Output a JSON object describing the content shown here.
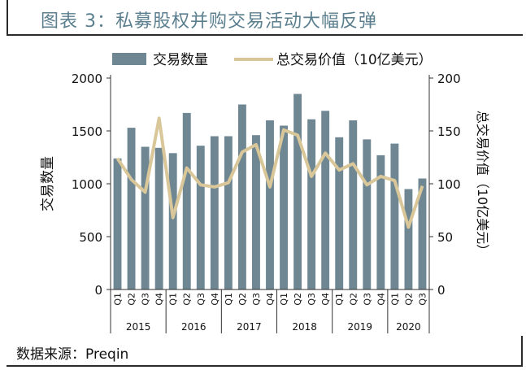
{
  "title": "图表 3：私募股权并购交易活动大幅反弹",
  "source": "数据来源：Preqin",
  "colors": {
    "bar": "#6f8793",
    "line": "#d9c79a",
    "title": "#5b7f8f"
  },
  "chart_data": {
    "type": "bar",
    "legend": {
      "placement": "top",
      "bar_label": "交易数量",
      "line_label": "总交易价值（10亿美元）"
    },
    "ylabel_left": "交易数量",
    "ylabel_right": "总交易价值（10亿美元）",
    "ylim_left": [
      0,
      2000
    ],
    "yticks_left": [
      0,
      500,
      1000,
      1500,
      2000
    ],
    "ylim_right": [
      0,
      200
    ],
    "yticks_right": [
      0,
      50,
      100,
      150,
      200
    ],
    "quarters": [
      "Q1",
      "Q2",
      "Q3",
      "Q4",
      "Q1",
      "Q2",
      "Q3",
      "Q4",
      "Q1",
      "Q2",
      "Q3",
      "Q4",
      "Q1",
      "Q2",
      "Q3",
      "Q4",
      "Q1",
      "Q2",
      "Q3",
      "Q4",
      "Q1",
      "Q2",
      "Q3"
    ],
    "years": [
      {
        "label": "2015",
        "count": 4
      },
      {
        "label": "2016",
        "count": 4
      },
      {
        "label": "2017",
        "count": 4
      },
      {
        "label": "2018",
        "count": 4
      },
      {
        "label": "2019",
        "count": 4
      },
      {
        "label": "2020",
        "count": 3
      }
    ],
    "series": [
      {
        "name": "交易数量",
        "axis": "left",
        "type": "bar",
        "values": [
          1240,
          1530,
          1350,
          1340,
          1290,
          1670,
          1360,
          1450,
          1450,
          1750,
          1460,
          1600,
          1550,
          1850,
          1610,
          1690,
          1440,
          1600,
          1420,
          1270,
          1380,
          950,
          1050
        ]
      },
      {
        "name": "总交易价值（10亿美元）",
        "axis": "right",
        "type": "line",
        "values": [
          124,
          104,
          92,
          162,
          68,
          115,
          99,
          97,
          101,
          130,
          137,
          97,
          151,
          146,
          107,
          129,
          113,
          119,
          99,
          107,
          103,
          59,
          98
        ]
      }
    ]
  }
}
